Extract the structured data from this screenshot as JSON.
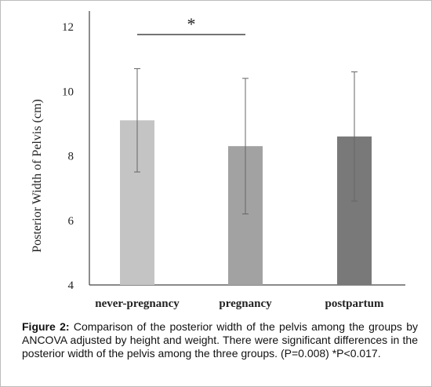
{
  "chart_data": {
    "type": "bar",
    "title": "",
    "xlabel": "",
    "ylabel": "Posterior Width of Pelvis (cm)",
    "ylim": [
      4,
      12
    ],
    "yticks": [
      "4",
      "6",
      "8",
      "10",
      "12"
    ],
    "categories": [
      "never-pregnancy",
      "pregnancy",
      "postpartum"
    ],
    "values": [
      9.1,
      8.3,
      8.6
    ],
    "error_upper": [
      10.7,
      10.4,
      10.6
    ],
    "error_lower": [
      7.5,
      6.2,
      6.6
    ],
    "colors": [
      "#c4c4c4",
      "#a2a2a2",
      "#797979"
    ],
    "significance": {
      "between": [
        "never-pregnancy",
        "pregnancy"
      ],
      "marker": "*"
    },
    "grid": false
  },
  "caption": {
    "label": "Figure 2:",
    "text": " Comparison of the posterior width of the pelvis among the groups by ANCOVA adjusted by height and weight. There were significant differences in the posterior width of the pelvis among the three groups. (P=0.008) *P<0.017."
  }
}
